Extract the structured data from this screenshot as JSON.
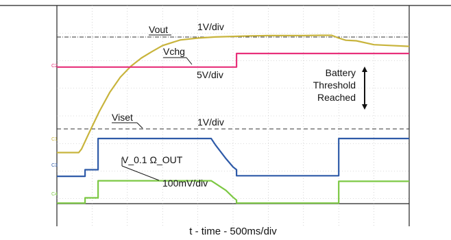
{
  "chart_data": {
    "type": "line",
    "xlabel": "t - time - 500ms/div",
    "grid": true,
    "x_divisions": 10,
    "y_divisions": 8,
    "annotations": {
      "vout_name": "Vout",
      "vout_scale": "1V/div",
      "vchg_name": "Vchg",
      "vchg_scale": "5V/div",
      "viset_name": "Viset",
      "viset_scale": "1V/div",
      "vshunt_name": "V_0.1 Ω_OUT",
      "vshunt_scale": "100mV/div",
      "battery_1": "Battery",
      "battery_2": "Threshold",
      "battery_3": "Reached"
    },
    "channel_markers": [
      "C2",
      "C1",
      "C3",
      "C4"
    ],
    "colors": {
      "vout": "#c8b43c",
      "vchg": "#e8307a",
      "viset": "#2e5aa8",
      "vshunt": "#7cc843",
      "grid": "#b8b8b8",
      "border": "#222222"
    },
    "series": [
      {
        "name": "Vout",
        "x": [
          0,
          0.55,
          0.62,
          0.7,
          0.9,
          1.2,
          1.5,
          1.8,
          2.1,
          2.4,
          2.7,
          3.0,
          3.5,
          4.0,
          4.5,
          5.0,
          5.5,
          6.0,
          6.5,
          7.0,
          7.5,
          7.8,
          8.0,
          8.2,
          8.5,
          9.0,
          10.0
        ],
        "y": [
          2.67,
          2.67,
          2.67,
          2.8,
          3.35,
          4.15,
          4.85,
          5.4,
          5.8,
          6.1,
          6.33,
          6.55,
          6.75,
          6.82,
          6.86,
          6.88,
          6.9,
          6.91,
          6.91,
          6.91,
          6.92,
          6.92,
          6.82,
          6.74,
          6.72,
          6.58,
          6.52
        ]
      },
      {
        "name": "Vchg",
        "x": [
          0,
          5.1,
          5.1,
          10.0
        ],
        "y": [
          5.77,
          5.77,
          6.26,
          6.26
        ]
      },
      {
        "name": "Viset",
        "x": [
          0,
          0.8,
          0.8,
          1.17,
          1.17,
          4.38,
          4.5,
          4.8,
          5.0,
          5.1,
          5.1,
          8.0,
          8.0,
          10.0
        ],
        "y": [
          1.81,
          1.81,
          2.05,
          2.05,
          3.18,
          3.18,
          2.95,
          2.45,
          2.15,
          2.05,
          1.83,
          1.83,
          3.18,
          3.18
        ]
      },
      {
        "name": "V_0.1 Ω_OUT",
        "x": [
          0,
          0.8,
          0.8,
          1.17,
          1.17,
          4.38,
          4.5,
          4.8,
          5.0,
          5.1,
          5.1,
          8.0,
          8.0,
          10.0
        ],
        "y": [
          0.84,
          0.84,
          1.03,
          1.03,
          1.65,
          1.65,
          1.55,
          1.3,
          1.05,
          0.95,
          0.84,
          0.84,
          1.63,
          1.63
        ]
      }
    ]
  }
}
